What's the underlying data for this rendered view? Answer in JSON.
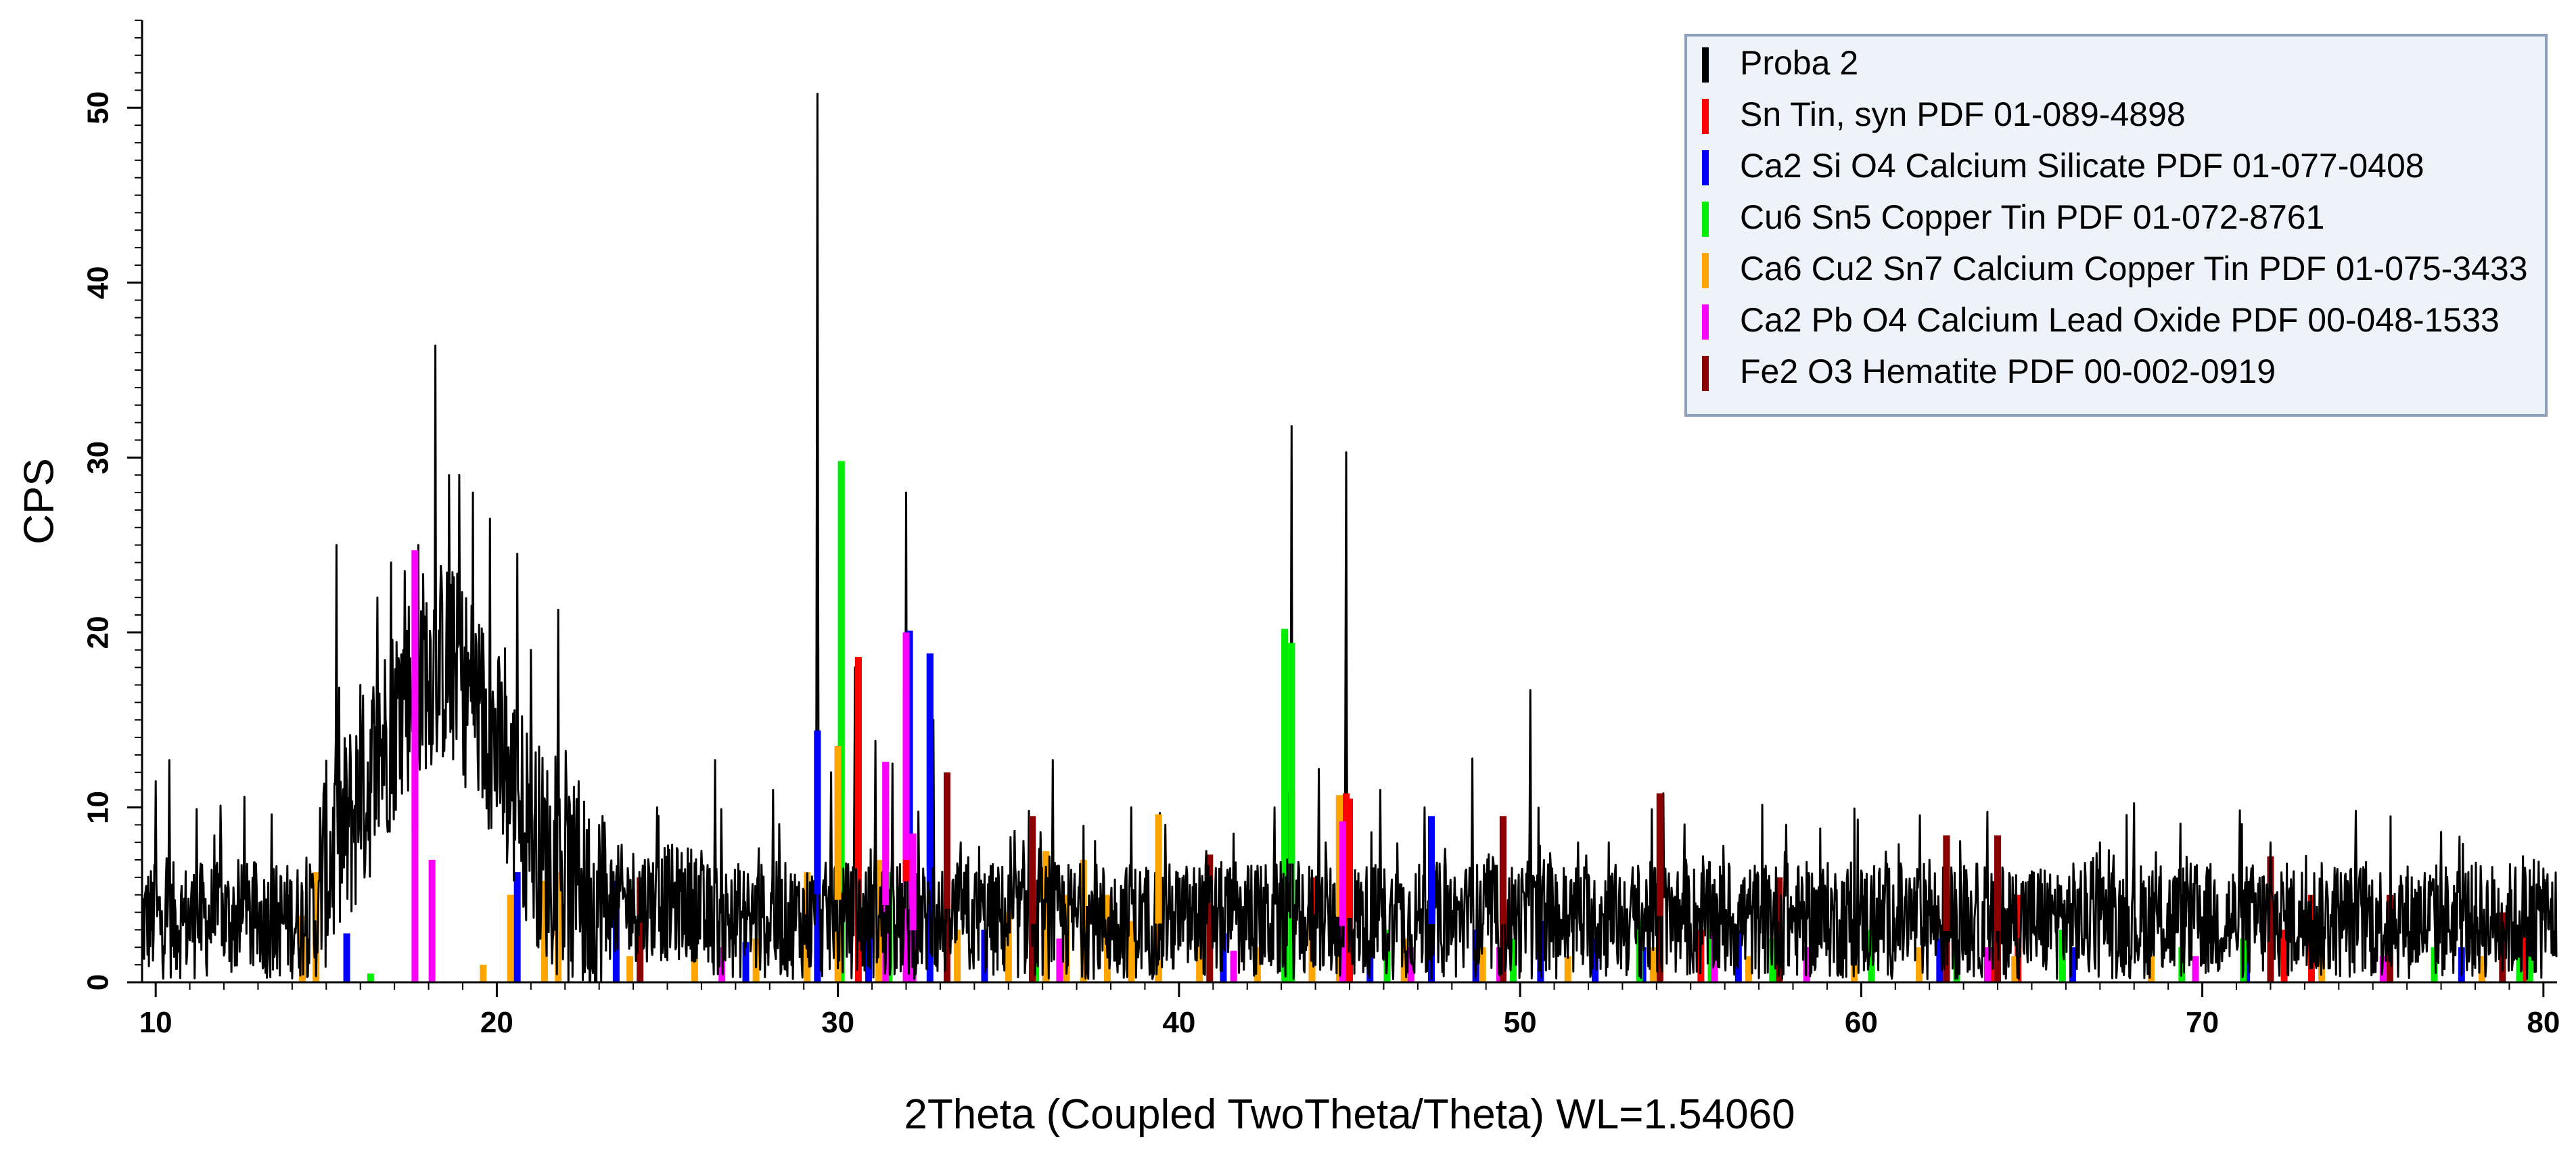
{
  "chart_data": {
    "type": "line",
    "title": "",
    "xlabel": "2Theta (Coupled TwoTheta/Theta) WL=1.54060",
    "ylabel": "CPS",
    "xlim": [
      9.6,
      80.4
    ],
    "ylim": [
      0,
      55
    ],
    "x_ticks": [
      10,
      20,
      30,
      40,
      50,
      60,
      70,
      80
    ],
    "y_ticks": [
      0,
      10,
      20,
      30,
      40,
      50
    ],
    "grid": false,
    "legend_position": "top-right",
    "series": [
      {
        "name": "Proba 2",
        "color": "#000000",
        "kind": "pattern",
        "peaks": [
          [
            10.0,
            11.5
          ],
          [
            10.4,
            12.7
          ],
          [
            11.2,
            9.9
          ],
          [
            11.9,
            10.1
          ],
          [
            12.6,
            10.6
          ],
          [
            13.4,
            9.6
          ],
          [
            14.6,
            6.2
          ],
          [
            15.3,
            25.0
          ],
          [
            16.0,
            17.0
          ],
          [
            16.5,
            22.0
          ],
          [
            16.9,
            24.0
          ],
          [
            17.3,
            23.5
          ],
          [
            17.7,
            25.0
          ],
          [
            18.2,
            36.4
          ],
          [
            18.6,
            29.0
          ],
          [
            18.9,
            29.0
          ],
          [
            19.3,
            28.0
          ],
          [
            19.8,
            26.5
          ],
          [
            20.6,
            24.5
          ],
          [
            21.0,
            19.0
          ],
          [
            21.8,
            21.3
          ],
          [
            22.4,
            11.5
          ],
          [
            23.1,
            9.5
          ],
          [
            24.7,
            10.0
          ],
          [
            26.4,
            12.7
          ],
          [
            28.1,
            11.0
          ],
          [
            29.4,
            50.8
          ],
          [
            29.8,
            12.0
          ],
          [
            30.5,
            18.0
          ],
          [
            31.1,
            13.8
          ],
          [
            31.6,
            12.5
          ],
          [
            32.0,
            28.0
          ],
          [
            32.8,
            15.0
          ],
          [
            33.6,
            8.0
          ],
          [
            35.6,
            9.8
          ],
          [
            36.3,
            12.7
          ],
          [
            38.6,
            10.0
          ],
          [
            39.6,
            9.0
          ],
          [
            40.8,
            7.5
          ],
          [
            41.6,
            8.5
          ],
          [
            42.8,
            10.0
          ],
          [
            43.3,
            31.8
          ],
          [
            44.1,
            12.2
          ],
          [
            44.9,
            30.3
          ],
          [
            45.9,
            11.0
          ],
          [
            47.2,
            10.0
          ],
          [
            48.6,
            12.8
          ],
          [
            50.3,
            16.7
          ],
          [
            51.7,
            8.0
          ],
          [
            52.6,
            8.0
          ],
          [
            54.2,
            10.8
          ],
          [
            57.8,
            9.0
          ],
          [
            62.0,
            7.0
          ],
          [
            67.0,
            8.0
          ],
          [
            72.0,
            8.0
          ],
          [
            74.5,
            9.8
          ],
          [
            77.0,
            8.6
          ],
          [
            79.4,
            7.2
          ],
          [
            80.0,
            6.5
          ]
        ]
      },
      {
        "name": "Sn Tin, syn PDF 01-089-4898",
        "color": "#ff0000",
        "kind": "sticks",
        "peaks": [
          [
            30.6,
            18.6
          ],
          [
            32.0,
            16.5
          ],
          [
            43.9,
            6.0
          ],
          [
            44.9,
            10.8
          ],
          [
            45.0,
            10.5
          ],
          [
            55.3,
            3.0
          ],
          [
            62.5,
            3.5
          ],
          [
            63.8,
            2.0
          ],
          [
            64.6,
            5.0
          ],
          [
            72.4,
            3.0
          ],
          [
            73.2,
            5.0
          ],
          [
            79.5,
            3.2
          ]
        ]
      },
      {
        "name": "Ca2 Si O4 Calcium Silicate PDF 01-077-0408",
        "color": "#0000ff",
        "kind": "sticks",
        "peaks": [
          [
            15.6,
            2.8
          ],
          [
            20.6,
            6.3
          ],
          [
            23.5,
            5.8
          ],
          [
            27.3,
            2.3
          ],
          [
            29.4,
            14.4
          ],
          [
            30.9,
            3.0
          ],
          [
            32.1,
            20.1
          ],
          [
            32.7,
            18.8
          ],
          [
            34.3,
            3.0
          ],
          [
            36.1,
            3.5
          ],
          [
            39.4,
            2.5
          ],
          [
            41.3,
            2.8
          ],
          [
            45.6,
            2.0
          ],
          [
            47.4,
            9.5
          ],
          [
            48.7,
            3.0
          ],
          [
            50.6,
            3.5
          ],
          [
            52.2,
            2.5
          ],
          [
            53.6,
            2.0
          ],
          [
            56.4,
            3.0
          ],
          [
            62.3,
            2.5
          ],
          [
            66.2,
            2.0
          ],
          [
            71.3,
            2.0
          ],
          [
            77.6,
            2.0
          ]
        ]
      },
      {
        "name": "Cu6 Sn5 Copper Tin PDF 01-072-8761",
        "color": "#00ee00",
        "kind": "sticks",
        "peaks": [
          [
            16.3,
            0.5
          ],
          [
            30.1,
            29.8
          ],
          [
            31.5,
            6.3
          ],
          [
            35.8,
            2.5
          ],
          [
            43.1,
            20.2
          ],
          [
            43.3,
            19.4
          ],
          [
            46.1,
            3.0
          ],
          [
            49.8,
            2.5
          ],
          [
            53.5,
            3.5
          ],
          [
            55.6,
            3.0
          ],
          [
            57.4,
            2.5
          ],
          [
            60.3,
            3.0
          ],
          [
            62.8,
            2.0
          ],
          [
            65.9,
            3.0
          ],
          [
            69.4,
            2.0
          ],
          [
            71.2,
            2.5
          ],
          [
            76.8,
            2.0
          ],
          [
            79.3,
            3.2
          ],
          [
            79.6,
            3.5
          ]
        ]
      },
      {
        "name": "Ca6 Cu2 Sn7 Calcium Copper Tin PDF 01-075-3433",
        "color": "#ffa500",
        "kind": "sticks",
        "peaks": [
          [
            14.3,
            3.8
          ],
          [
            14.7,
            6.3
          ],
          [
            19.6,
            1.0
          ],
          [
            20.4,
            5.0
          ],
          [
            21.4,
            5.8
          ],
          [
            21.8,
            6.3
          ],
          [
            23.9,
            1.5
          ],
          [
            25.8,
            2.0
          ],
          [
            27.6,
            2.5
          ],
          [
            29.1,
            6.3
          ],
          [
            30.0,
            13.5
          ],
          [
            31.2,
            7.0
          ],
          [
            33.5,
            3.0
          ],
          [
            35.0,
            4.0
          ],
          [
            36.1,
            7.5
          ],
          [
            36.7,
            5.0
          ],
          [
            37.2,
            7.0
          ],
          [
            37.9,
            5.0
          ],
          [
            38.6,
            3.5
          ],
          [
            39.4,
            9.6
          ],
          [
            40.6,
            3.5
          ],
          [
            42.3,
            2.0
          ],
          [
            43.9,
            3.5
          ],
          [
            44.7,
            10.7
          ],
          [
            46.6,
            2.5
          ],
          [
            48.9,
            2.0
          ],
          [
            51.4,
            1.5
          ],
          [
            53.9,
            2.0
          ],
          [
            56.7,
            1.5
          ],
          [
            59.8,
            3.0
          ],
          [
            61.7,
            2.0
          ],
          [
            64.5,
            1.5
          ],
          [
            68.5,
            1.5
          ],
          [
            73.5,
            1.5
          ],
          [
            78.2,
            1.5
          ]
        ]
      },
      {
        "name": "Ca2 Pb O4 Calcium Lead Oxide PDF 00-048-1533",
        "color": "#ff00ff",
        "kind": "sticks",
        "peaks": [
          [
            17.6,
            24.7
          ],
          [
            18.1,
            7.0
          ],
          [
            26.6,
            2.0
          ],
          [
            31.4,
            12.6
          ],
          [
            32.0,
            20.0
          ],
          [
            32.2,
            8.5
          ],
          [
            36.5,
            2.5
          ],
          [
            41.6,
            1.8
          ],
          [
            44.8,
            9.2
          ],
          [
            46.8,
            2.0
          ],
          [
            49.4,
            2.0
          ],
          [
            55.7,
            3.5
          ],
          [
            58.4,
            2.0
          ],
          [
            63.7,
            2.0
          ],
          [
            69.8,
            1.5
          ],
          [
            75.3,
            1.5
          ]
        ]
      },
      {
        "name": "Fe2 O3 Hematite PDF 00-002-0919",
        "color": "#8b0000",
        "kind": "sticks",
        "peaks": [
          [
            24.2,
            6.0
          ],
          [
            33.2,
            12.0
          ],
          [
            35.7,
            9.5
          ],
          [
            40.9,
            7.3
          ],
          [
            49.5,
            9.5
          ],
          [
            54.1,
            10.8
          ],
          [
            57.6,
            6.0
          ],
          [
            62.5,
            8.4
          ],
          [
            64.0,
            8.4
          ],
          [
            72.0,
            7.2
          ],
          [
            75.5,
            5.0
          ],
          [
            78.8,
            4.0
          ]
        ]
      }
    ]
  }
}
